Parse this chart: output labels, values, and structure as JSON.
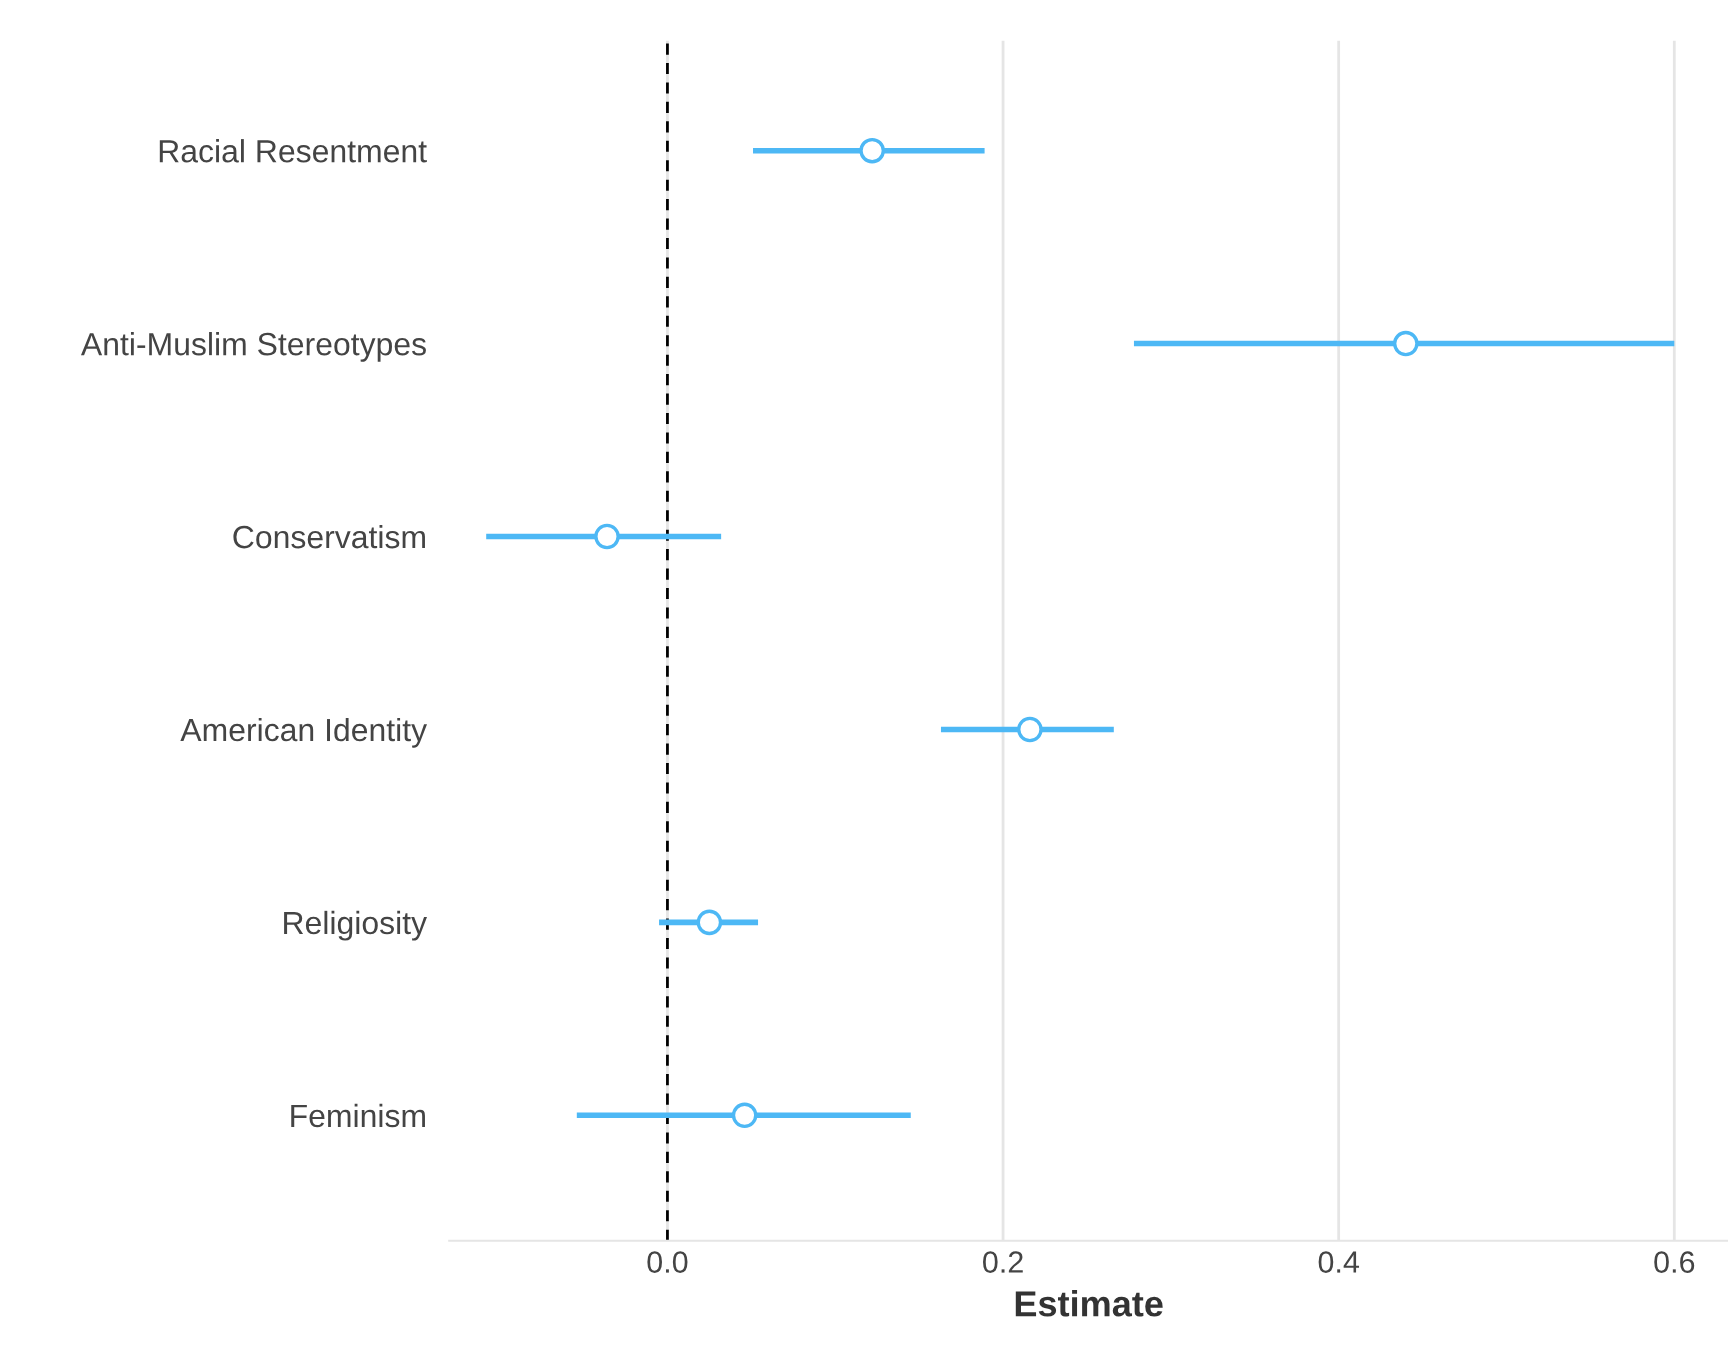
{
  "chart_data": {
    "type": "scatter",
    "orientation": "horizontal",
    "xlabel": "Estimate",
    "categories": [
      "Racial Resentment",
      "Anti-Muslim Stereotypes",
      "Conservatism",
      "American Identity",
      "Religiosity",
      "Feminism"
    ],
    "color": "#4db8f5",
    "values": [
      0.122,
      0.44,
      -0.036,
      0.216,
      0.025,
      0.046
    ],
    "errors": [
      [
        0.051,
        0.189
      ],
      [
        0.278,
        0.6
      ],
      [
        -0.108,
        0.032
      ],
      [
        0.163,
        0.266
      ],
      [
        -0.005,
        0.054
      ],
      [
        -0.054,
        0.145
      ]
    ],
    "xlim": [
      -0.13,
      0.632
    ],
    "xticks": [
      {
        "value": 0,
        "label": "0.0"
      },
      0.2,
      0.4,
      0.6
    ],
    "grid": "x",
    "marker": "circle",
    "ref_lines": [
      {
        "axis": "x",
        "value": 0,
        "color": "#000000",
        "line_style": "dashed"
      }
    ]
  }
}
